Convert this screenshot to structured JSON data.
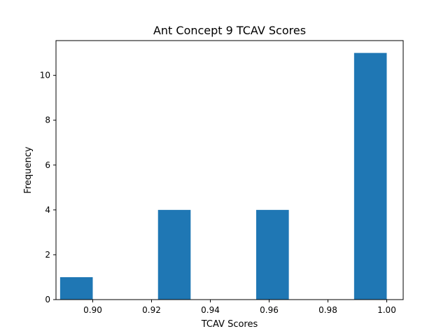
{
  "chart_data": {
    "type": "bar",
    "title": "Ant Concept 9 TCAV Scores",
    "xlabel": "TCAV Scores",
    "ylabel": "Frequency",
    "xlim": [
      0.8875,
      1.0056
    ],
    "ylim": [
      0,
      11.55
    ],
    "xticks": [
      0.9,
      0.92,
      0.94,
      0.96,
      0.98,
      1.0
    ],
    "xtick_labels": [
      "0.90",
      "0.92",
      "0.94",
      "0.96",
      "0.98",
      "1.00"
    ],
    "yticks": [
      0,
      2,
      4,
      6,
      8,
      10
    ],
    "ytick_labels": [
      "0",
      "2",
      "4",
      "6",
      "8",
      "10"
    ],
    "bins": [
      {
        "start": 0.8889,
        "end": 0.9,
        "count": 1
      },
      {
        "start": 0.9222,
        "end": 0.9333,
        "count": 4
      },
      {
        "start": 0.9556,
        "end": 0.9667,
        "count": 4
      },
      {
        "start": 0.9889,
        "end": 1.0,
        "count": 11
      }
    ],
    "grid": false,
    "bar_color": "#1f77b4"
  }
}
